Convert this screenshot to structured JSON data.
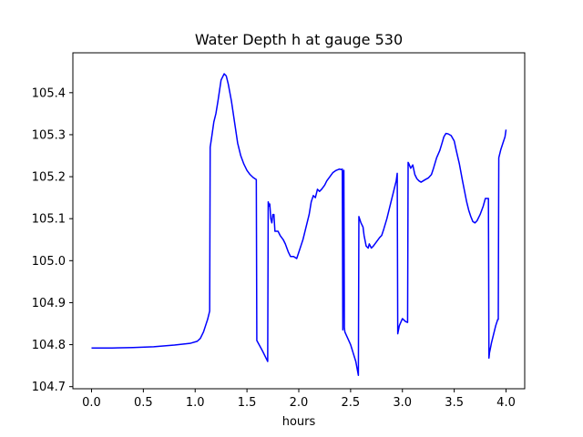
{
  "chart_data": {
    "type": "line",
    "title": "Water Depth h at gauge 530",
    "xlabel": "hours",
    "ylabel": "",
    "xlim": [
      -0.18,
      4.18
    ],
    "ylim": [
      104.695,
      105.495
    ],
    "xticks": [
      0.0,
      0.5,
      1.0,
      1.5,
      2.0,
      2.5,
      3.0,
      3.5,
      4.0
    ],
    "xtick_labels": [
      "0.0",
      "0.5",
      "1.0",
      "1.5",
      "2.0",
      "2.5",
      "3.0",
      "3.5",
      "4.0"
    ],
    "yticks": [
      104.7,
      104.8,
      104.9,
      105.0,
      105.1,
      105.2,
      105.3,
      105.4
    ],
    "ytick_labels": [
      "104.7",
      "104.8",
      "104.9",
      "105.0",
      "105.1",
      "105.2",
      "105.3",
      "105.4"
    ],
    "grid": false,
    "series": [
      {
        "color": "#0000ff",
        "x": [
          0.0,
          0.2,
          0.4,
          0.6,
          0.8,
          0.95,
          1.02,
          1.05,
          1.08,
          1.1,
          1.12,
          1.14,
          1.145,
          1.16,
          1.18,
          1.2,
          1.22,
          1.25,
          1.28,
          1.3,
          1.32,
          1.35,
          1.38,
          1.41,
          1.44,
          1.47,
          1.5,
          1.53,
          1.56,
          1.59,
          1.595,
          1.65,
          1.7,
          1.705,
          1.715,
          1.72,
          1.73,
          1.74,
          1.75,
          1.76,
          1.77,
          1.8,
          1.82,
          1.85,
          1.87,
          1.9,
          1.92,
          1.95,
          1.98,
          2.0,
          2.02,
          2.04,
          2.06,
          2.08,
          2.1,
          2.12,
          2.14,
          2.16,
          2.18,
          2.2,
          2.22,
          2.25,
          2.27,
          2.3,
          2.33,
          2.36,
          2.39,
          2.41,
          2.42,
          2.425,
          2.43,
          2.435,
          2.44,
          2.445,
          2.5,
          2.55,
          2.575,
          2.58,
          2.6,
          2.62,
          2.63,
          2.65,
          2.67,
          2.68,
          2.7,
          2.72,
          2.75,
          2.78,
          2.8,
          2.82,
          2.85,
          2.88,
          2.92,
          2.94,
          2.95,
          2.955,
          2.97,
          3.0,
          3.03,
          3.05,
          3.055,
          3.06,
          3.08,
          3.1,
          3.12,
          3.14,
          3.16,
          3.18,
          3.2,
          3.22,
          3.25,
          3.28,
          3.3,
          3.33,
          3.36,
          3.38,
          3.4,
          3.42,
          3.44,
          3.47,
          3.5,
          3.52,
          3.55,
          3.58,
          3.6,
          3.62,
          3.64,
          3.66,
          3.68,
          3.7,
          3.72,
          3.75,
          3.78,
          3.8,
          3.82,
          3.83,
          3.835,
          3.84,
          3.86,
          3.88,
          3.9,
          3.92,
          3.925,
          3.93,
          3.95,
          3.97,
          3.99,
          4.0
        ],
        "y": [
          104.792,
          104.792,
          104.793,
          104.795,
          104.799,
          104.803,
          104.808,
          104.815,
          104.83,
          104.845,
          104.86,
          104.88,
          105.27,
          105.295,
          105.33,
          105.35,
          105.38,
          105.43,
          105.445,
          105.44,
          105.42,
          105.38,
          105.33,
          105.28,
          105.25,
          105.23,
          105.215,
          105.205,
          105.198,
          105.193,
          104.81,
          104.785,
          104.76,
          105.14,
          105.13,
          105.135,
          105.1,
          105.09,
          105.11,
          105.11,
          105.07,
          105.07,
          105.06,
          105.05,
          105.04,
          105.02,
          105.01,
          105.01,
          105.005,
          105.02,
          105.035,
          105.05,
          105.07,
          105.09,
          105.11,
          105.14,
          105.155,
          105.15,
          105.17,
          105.165,
          105.17,
          105.18,
          105.19,
          105.2,
          105.21,
          105.215,
          105.218,
          105.217,
          105.218,
          104.835,
          105.21,
          105.215,
          104.84,
          104.83,
          104.8,
          104.76,
          104.727,
          105.105,
          105.09,
          105.08,
          105.06,
          105.035,
          105.03,
          105.04,
          105.03,
          105.035,
          105.045,
          105.055,
          105.06,
          105.075,
          105.1,
          105.13,
          105.17,
          105.19,
          105.208,
          104.826,
          104.845,
          104.862,
          104.855,
          104.853,
          105.234,
          105.232,
          105.22,
          105.228,
          105.205,
          105.195,
          105.19,
          105.187,
          105.19,
          105.193,
          105.197,
          105.205,
          105.22,
          105.245,
          105.262,
          105.278,
          105.295,
          105.303,
          105.302,
          105.298,
          105.285,
          105.262,
          105.23,
          105.19,
          105.165,
          105.14,
          105.12,
          105.105,
          105.093,
          105.09,
          105.095,
          105.11,
          105.13,
          105.148,
          105.148,
          105.148,
          104.768,
          104.78,
          104.805,
          104.825,
          104.845,
          104.86,
          104.86,
          105.245,
          105.265,
          105.28,
          105.295,
          105.312
        ]
      }
    ]
  }
}
